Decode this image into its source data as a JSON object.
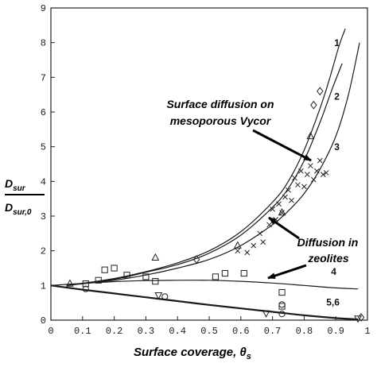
{
  "chart_data": {
    "type": "line",
    "xlabel": "Surface coverage, θ",
    "xlabel_sub": "s",
    "ylabel_num": "D",
    "ylabel_num_sub": "sur",
    "ylabel_den": "D",
    "ylabel_den_sub": "sur,0",
    "xlim": [
      0,
      1
    ],
    "ylim": [
      0,
      9
    ],
    "x_ticks": [
      0,
      0.1,
      0.2,
      0.3,
      0.4,
      0.5,
      0.6,
      0.7,
      0.8,
      0.9,
      1
    ],
    "x_tick_labels": [
      "0",
      "0.1",
      "0.2",
      "0.3",
      "0.4",
      "0.5",
      "0.6",
      "0.7",
      "0.8",
      "0.9",
      "1"
    ],
    "y_ticks": [
      0,
      1,
      2,
      3,
      4,
      5,
      6,
      7,
      8,
      9
    ],
    "y_tick_labels": [
      "0",
      "1",
      "2",
      "3",
      "4",
      "5",
      "6",
      "7",
      "8",
      "9"
    ],
    "series": [
      {
        "name": "1",
        "x": [
          0.05,
          0.2,
          0.3,
          0.4,
          0.5,
          0.6,
          0.7,
          0.75,
          0.8,
          0.85,
          0.88,
          0.91,
          0.93
        ],
        "y": [
          1.0,
          1.2,
          1.4,
          1.65,
          2.0,
          2.55,
          3.4,
          4.0,
          4.9,
          6.1,
          6.95,
          7.9,
          8.4
        ]
      },
      {
        "name": "2",
        "x": [
          0.05,
          0.2,
          0.3,
          0.4,
          0.5,
          0.6,
          0.7,
          0.75,
          0.8,
          0.85,
          0.89,
          0.92
        ],
        "y": [
          1.0,
          1.18,
          1.38,
          1.6,
          1.93,
          2.45,
          3.25,
          3.8,
          4.6,
          5.7,
          6.7,
          7.4
        ]
      },
      {
        "name": "3",
        "x": [
          0.05,
          0.2,
          0.3,
          0.4,
          0.5,
          0.6,
          0.7,
          0.75,
          0.8,
          0.85,
          0.9,
          0.94,
          0.975
        ],
        "y": [
          1.0,
          1.15,
          1.3,
          1.5,
          1.75,
          2.15,
          2.75,
          3.15,
          3.65,
          4.35,
          5.3,
          6.5,
          8.0
        ]
      },
      {
        "name": "4",
        "x": [
          0.0,
          0.1,
          0.2,
          0.3,
          0.4,
          0.5,
          0.6,
          0.7,
          0.8,
          0.9,
          0.97
        ],
        "y": [
          1.0,
          1.06,
          1.11,
          1.14,
          1.15,
          1.15,
          1.12,
          1.07,
          1.0,
          0.93,
          0.9
        ]
      },
      {
        "name": "5,6",
        "x": [
          0.0,
          0.1,
          0.2,
          0.3,
          0.4,
          0.5,
          0.6,
          0.7,
          0.8,
          0.9,
          0.97
        ],
        "y": [
          1.0,
          0.88,
          0.77,
          0.66,
          0.55,
          0.44,
          0.34,
          0.24,
          0.14,
          0.06,
          0.02
        ]
      }
    ],
    "curve_labels": [
      {
        "text": "1",
        "x": 0.895,
        "y": 7.9
      },
      {
        "text": "2",
        "x": 0.895,
        "y": 6.35
      },
      {
        "text": "3",
        "x": 0.895,
        "y": 4.9
      },
      {
        "text": "4",
        "x": 0.885,
        "y": 1.3
      },
      {
        "text": "5,6",
        "x": 0.87,
        "y": 0.42
      }
    ],
    "markers": [
      {
        "shape": "triangle",
        "x": 0.06,
        "y": 1.05
      },
      {
        "shape": "triangle",
        "x": 0.33,
        "y": 1.8
      },
      {
        "shape": "triangle",
        "x": 0.59,
        "y": 2.15
      },
      {
        "shape": "triangle",
        "x": 0.73,
        "y": 3.1
      },
      {
        "shape": "triangle",
        "x": 0.82,
        "y": 5.3
      },
      {
        "shape": "diamond",
        "x": 0.46,
        "y": 1.75
      },
      {
        "shape": "diamond",
        "x": 0.83,
        "y": 6.2
      },
      {
        "shape": "diamond",
        "x": 0.85,
        "y": 6.6
      },
      {
        "shape": "diamond",
        "x": 0.98,
        "y": 0.08
      },
      {
        "shape": "square",
        "x": 0.11,
        "y": 1.05
      },
      {
        "shape": "square",
        "x": 0.15,
        "y": 1.15
      },
      {
        "shape": "square",
        "x": 0.17,
        "y": 1.45
      },
      {
        "shape": "square",
        "x": 0.2,
        "y": 1.5
      },
      {
        "shape": "square",
        "x": 0.24,
        "y": 1.3
      },
      {
        "shape": "square",
        "x": 0.3,
        "y": 1.25
      },
      {
        "shape": "square",
        "x": 0.33,
        "y": 1.12
      },
      {
        "shape": "square",
        "x": 0.52,
        "y": 1.25
      },
      {
        "shape": "square",
        "x": 0.55,
        "y": 1.35
      },
      {
        "shape": "square",
        "x": 0.61,
        "y": 1.35
      },
      {
        "shape": "square",
        "x": 0.73,
        "y": 0.8
      },
      {
        "shape": "square",
        "x": 0.73,
        "y": 0.4
      },
      {
        "shape": "circle",
        "x": 0.11,
        "y": 0.9
      },
      {
        "shape": "circle",
        "x": 0.36,
        "y": 0.68
      },
      {
        "shape": "circle",
        "x": 0.73,
        "y": 0.45
      },
      {
        "shape": "circle",
        "x": 0.73,
        "y": 0.18
      },
      {
        "shape": "invtriangle",
        "x": 0.34,
        "y": 0.72
      },
      {
        "shape": "invtriangle",
        "x": 0.68,
        "y": 0.2
      },
      {
        "shape": "invtriangle",
        "x": 0.97,
        "y": 0.05
      },
      {
        "shape": "cross",
        "x": 0.59,
        "y": 2.0
      },
      {
        "shape": "cross",
        "x": 0.62,
        "y": 1.95
      },
      {
        "shape": "cross",
        "x": 0.64,
        "y": 2.15
      },
      {
        "shape": "cross",
        "x": 0.66,
        "y": 2.5
      },
      {
        "shape": "cross",
        "x": 0.67,
        "y": 2.25
      },
      {
        "shape": "cross",
        "x": 0.69,
        "y": 2.75
      },
      {
        "shape": "cross",
        "x": 0.7,
        "y": 3.2
      },
      {
        "shape": "cross",
        "x": 0.71,
        "y": 2.9
      },
      {
        "shape": "cross",
        "x": 0.72,
        "y": 3.35
      },
      {
        "shape": "cross",
        "x": 0.73,
        "y": 3.1
      },
      {
        "shape": "cross",
        "x": 0.74,
        "y": 3.55
      },
      {
        "shape": "cross",
        "x": 0.75,
        "y": 3.75
      },
      {
        "shape": "cross",
        "x": 0.76,
        "y": 3.45
      },
      {
        "shape": "cross",
        "x": 0.77,
        "y": 4.1
      },
      {
        "shape": "cross",
        "x": 0.78,
        "y": 3.9
      },
      {
        "shape": "cross",
        "x": 0.79,
        "y": 4.3
      },
      {
        "shape": "cross",
        "x": 0.8,
        "y": 3.85
      },
      {
        "shape": "cross",
        "x": 0.81,
        "y": 4.2
      },
      {
        "shape": "cross",
        "x": 0.82,
        "y": 4.45
      },
      {
        "shape": "cross",
        "x": 0.83,
        "y": 4.05
      },
      {
        "shape": "cross",
        "x": 0.84,
        "y": 4.3
      },
      {
        "shape": "cross",
        "x": 0.85,
        "y": 4.6
      },
      {
        "shape": "cross",
        "x": 0.86,
        "y": 4.2
      },
      {
        "shape": "cross",
        "x": 0.87,
        "y": 4.25
      }
    ],
    "annotations": [
      {
        "lines": [
          "Surface diffusion on",
          "mesoporous Vycor"
        ]
      },
      {
        "lines": [
          "Diffusion in",
          "zeolites"
        ]
      }
    ]
  }
}
